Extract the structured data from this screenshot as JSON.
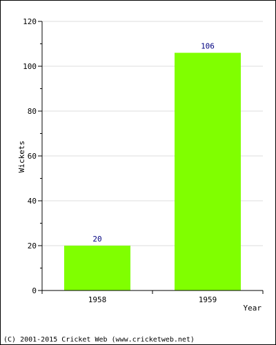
{
  "chart_data": {
    "type": "bar",
    "categories": [
      "1958",
      "1959"
    ],
    "values": [
      20,
      106
    ],
    "xlabel": "Year",
    "ylabel": "Wickets",
    "ylim": [
      0,
      120
    ],
    "yticks": [
      0,
      20,
      40,
      60,
      80,
      100,
      120
    ],
    "grid": true,
    "bar_color": "#80ff00",
    "value_label_color": "#000080"
  },
  "footer": {
    "copyright": "(C) 2001-2015 Cricket Web (www.cricketweb.net)"
  }
}
